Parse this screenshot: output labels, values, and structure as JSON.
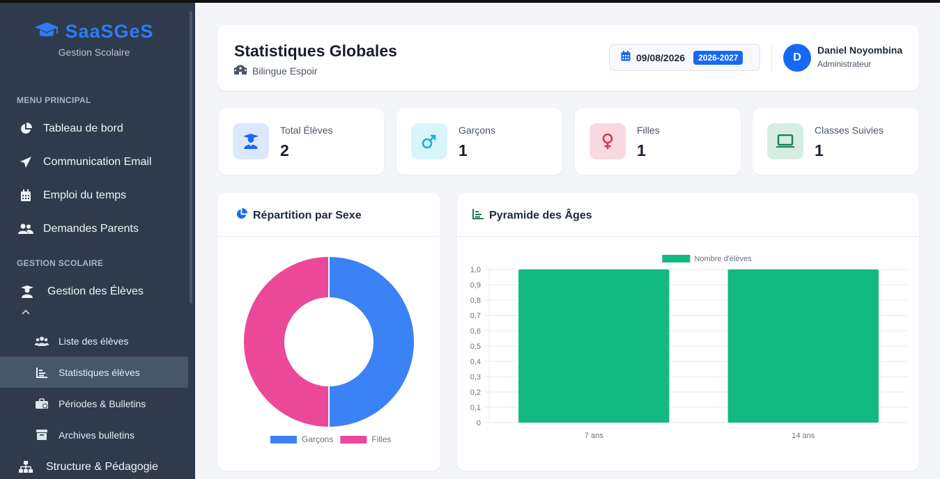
{
  "sidebar": {
    "brand_title": "SaaSGeS",
    "brand_subtitle": "Gestion Scolaire",
    "section_main": "MENU PRINCIPAL",
    "section_school": "GESTION SCOLAIRE",
    "items": [
      {
        "label": "Tableau de bord",
        "icon": "pie-chart-icon"
      },
      {
        "label": "Communication Email",
        "icon": "paper-plane-icon"
      },
      {
        "label": "Emploi du temps",
        "icon": "calendar-icon"
      },
      {
        "label": "Demandes Parents",
        "icon": "users-icon"
      },
      {
        "label": "Gestion des Élèves",
        "icon": "graduate-icon"
      }
    ],
    "subitems": [
      {
        "label": "Liste des élèves",
        "icon": "users-icon"
      },
      {
        "label": "Statistiques élèves",
        "icon": "bar-chart-icon",
        "active": true
      },
      {
        "label": "Périodes & Bulletins",
        "icon": "briefcase-icon"
      },
      {
        "label": "Archives bulletins",
        "icon": "archive-icon"
      }
    ],
    "structure_label": "Structure & Pédagogie"
  },
  "header": {
    "title": "Statistiques Globales",
    "school": "Bilingue Espoir",
    "date": "09/08/2026",
    "school_year": "2026-2027",
    "user_initial": "D",
    "user_name": "Daniel Noyombina",
    "user_role": "Administrateur"
  },
  "stats": [
    {
      "label": "Total Élèves",
      "value": "2",
      "icon": "graduate-icon",
      "color": "#1769f5",
      "bg": "#dbe8fd"
    },
    {
      "label": "Garçons",
      "value": "1",
      "icon": "male-icon",
      "color": "#0fb3d6",
      "bg": "#d8f5fb"
    },
    {
      "label": "Filles",
      "value": "1",
      "icon": "female-icon",
      "color": "#d9344a",
      "bg": "#f8dade"
    },
    {
      "label": "Classes Suivies",
      "value": "1",
      "icon": "laptop-icon",
      "color": "#1b7d54",
      "bg": "#d6ede3"
    }
  ],
  "gender_chart": {
    "title": "Répartition par Sexe",
    "chart_data": {
      "type": "pie",
      "labels": [
        "Garçons",
        "Filles"
      ],
      "values": [
        1,
        1
      ],
      "colors": [
        "#3b82f6",
        "#ec4899"
      ],
      "legend": "bottom"
    }
  },
  "age_chart": {
    "title": "Pyramide des Âges",
    "chart_data": {
      "type": "bar",
      "categories": [
        "7 ans",
        "14 ans"
      ],
      "series": [
        {
          "name": "Nombre d'élèves",
          "values": [
            1,
            1
          ]
        }
      ],
      "ylim": [
        0,
        1
      ],
      "yticks": [
        "0",
        "0,1",
        "0,2",
        "0,3",
        "0,4",
        "0,5",
        "0,6",
        "0,7",
        "0,8",
        "0,9",
        "1,0"
      ],
      "color": "#12b981",
      "grid": true,
      "legend": "top"
    }
  }
}
